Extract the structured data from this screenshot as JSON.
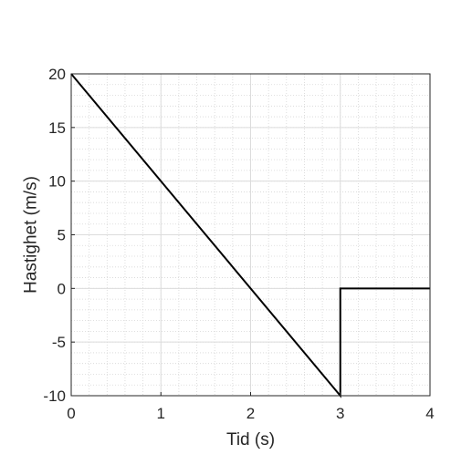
{
  "chart_data": {
    "type": "line",
    "title": "",
    "xlabel": "Tid (s)",
    "ylabel": "Hastighet (m/s)",
    "xlim": [
      0,
      4
    ],
    "ylim": [
      -10,
      20
    ],
    "x_ticks": [
      0,
      1,
      2,
      3,
      4
    ],
    "x_tick_labels": [
      "0",
      "1",
      "2",
      "3",
      "4"
    ],
    "y_ticks": [
      -10,
      -5,
      0,
      5,
      10,
      15,
      20
    ],
    "y_tick_labels": [
      "-10",
      "-5",
      "0",
      "5",
      "10",
      "15",
      "20"
    ],
    "grid": true,
    "minor_grid": true,
    "legend": "none",
    "series": [
      {
        "x": [
          0,
          3,
          3,
          4
        ],
        "y": [
          20,
          -10,
          0,
          0
        ],
        "color": "#000000"
      }
    ]
  }
}
